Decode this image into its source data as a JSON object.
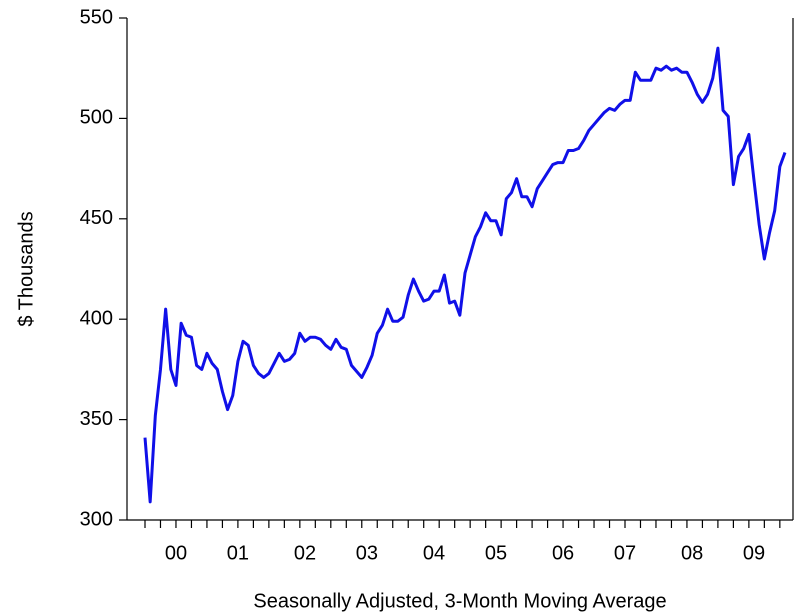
{
  "chart_data": {
    "type": "line",
    "ylabel": "$ Thousands",
    "xlabel": "Seasonally Adjusted, 3-Month Moving Average",
    "categories": [
      null,
      null,
      null,
      null,
      null,
      null,
      "00",
      null,
      null,
      null,
      null,
      null,
      null,
      null,
      null,
      null,
      null,
      null,
      "01",
      null,
      null,
      null,
      null,
      null,
      null,
      null,
      null,
      null,
      null,
      null,
      null,
      "02",
      null,
      null,
      null,
      null,
      null,
      null,
      null,
      null,
      null,
      null,
      null,
      "03",
      null,
      null,
      null,
      null,
      null,
      null,
      null,
      null,
      null,
      null,
      null,
      null,
      "04",
      null,
      null,
      null,
      null,
      null,
      null,
      null,
      null,
      null,
      null,
      null,
      "05",
      null,
      null,
      null,
      null,
      null,
      null,
      null,
      null,
      null,
      null,
      null,
      null,
      "06",
      null,
      null,
      null,
      null,
      null,
      null,
      null,
      null,
      null,
      null,
      null,
      "07",
      null,
      null,
      null,
      null,
      null,
      null,
      null,
      null,
      null,
      null,
      null,
      null,
      "08",
      null,
      null,
      null,
      null,
      null,
      null,
      null,
      null,
      null,
      null,
      null,
      "09",
      null,
      null,
      null,
      null,
      null,
      null
    ],
    "values": [
      341,
      309,
      352,
      375,
      405,
      375,
      367,
      398,
      392,
      391,
      377,
      375,
      383,
      378,
      375,
      364,
      355,
      362,
      379,
      389,
      387,
      377,
      373,
      371,
      373,
      378,
      383,
      379,
      380,
      383,
      393,
      389,
      391,
      391,
      390,
      387,
      385,
      390,
      386,
      385,
      377,
      374,
      371,
      376,
      382,
      393,
      397,
      405,
      399,
      399,
      401,
      412,
      420,
      414,
      409,
      410,
      414,
      414,
      422,
      408,
      409,
      402,
      423,
      432,
      441,
      446,
      453,
      449,
      449,
      442,
      460,
      463,
      470,
      461,
      461,
      456,
      465,
      469,
      473,
      477,
      478,
      478,
      484,
      484,
      485,
      489,
      494,
      497,
      500,
      503,
      505,
      504,
      507,
      509,
      509,
      523,
      519,
      519,
      519,
      525,
      524,
      526,
      524,
      525,
      523,
      523,
      518,
      512,
      508,
      512,
      520,
      535,
      504,
      501,
      467,
      481,
      485,
      492,
      469,
      447,
      430,
      443,
      454,
      476,
      483
    ],
    "color": "#1010e8",
    "ylim": [
      300,
      550
    ],
    "yticks": [
      300,
      350,
      400,
      450,
      500,
      550
    ],
    "grid": false
  }
}
